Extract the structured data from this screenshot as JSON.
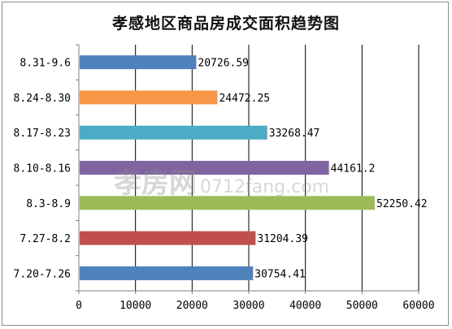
{
  "chart_data": {
    "type": "bar",
    "orientation": "horizontal",
    "title": "孝感地区商品房成交面积趋势图",
    "categories": [
      "8.31-9.6",
      "8.24-8.30",
      "8.17-8.23",
      "8.10-8.16",
      "8.3-8.9",
      "7.27-8.2",
      "7.20-7.26"
    ],
    "values": [
      20726.59,
      24472.25,
      33268.47,
      44161.2,
      52250.42,
      31204.39,
      30754.41
    ],
    "value_labels": [
      "20726.59",
      "24472.25",
      "33268.47",
      "44161.2",
      "52250.42",
      "31204.39",
      "30754.41"
    ],
    "bar_colors": [
      "#4f81bd",
      "#f79646",
      "#4bacc6",
      "#8064a2",
      "#9bbb59",
      "#c0504d",
      "#4f81bd"
    ],
    "xlim": [
      0,
      60000
    ],
    "x_ticks": [
      0,
      10000,
      20000,
      30000,
      40000,
      50000,
      60000
    ],
    "x_tick_labels": [
      "0",
      "10000",
      "20000",
      "30000",
      "40000",
      "50000",
      "60000"
    ],
    "xlabel": "",
    "ylabel": "",
    "grid": "vertical",
    "legend": "none"
  },
  "watermark": {
    "brand": "孝房网",
    "url": "0712fang.com"
  }
}
